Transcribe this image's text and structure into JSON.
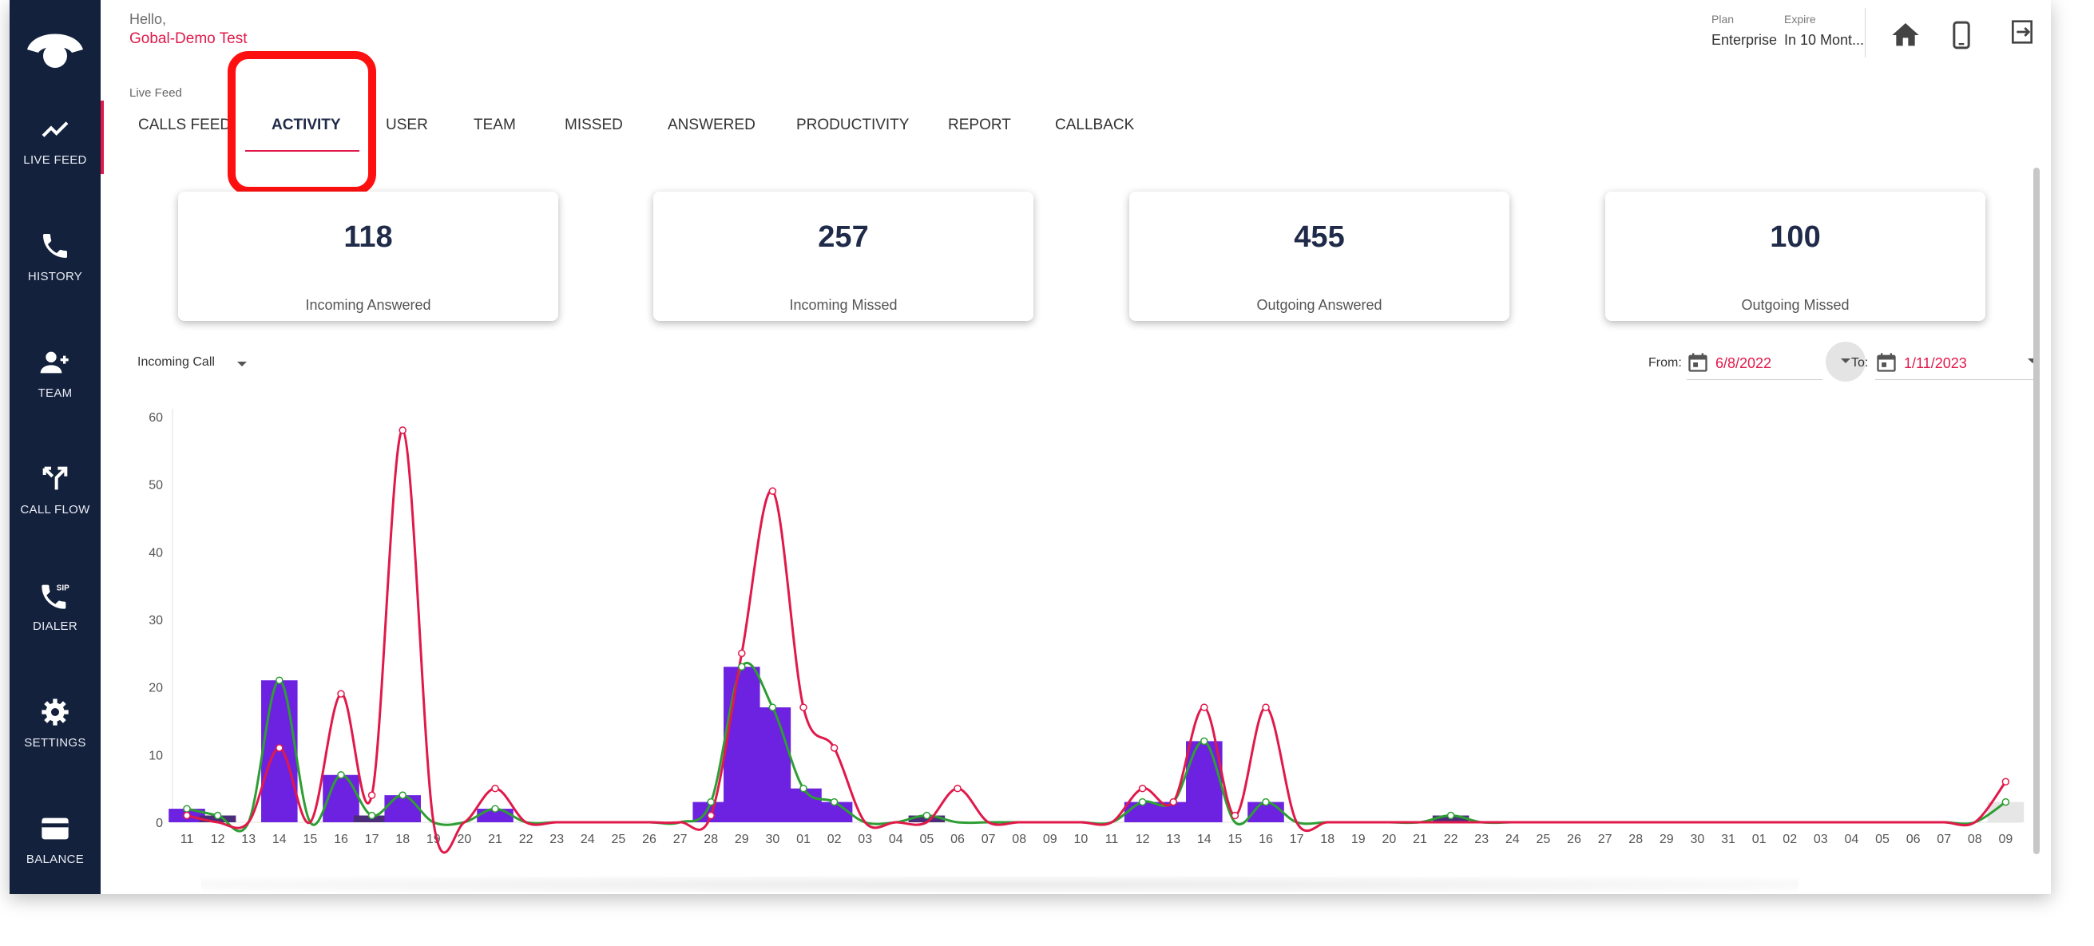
{
  "header": {
    "greeting": "Hello,",
    "user_name": "Gobal-Demo Test",
    "plan_label": "Plan",
    "plan_value": "Enterprise",
    "expire_label": "Expire",
    "expire_value": "In 10 Mont..."
  },
  "sidebar": {
    "items": [
      {
        "label": "LIVE FEED",
        "icon": "trend-icon"
      },
      {
        "label": "HISTORY",
        "icon": "phone-icon"
      },
      {
        "label": "TEAM",
        "icon": "add-user-icon"
      },
      {
        "label": "CALL FLOW",
        "icon": "call-split-icon"
      },
      {
        "label": "DIALER",
        "icon": "sip-phone-icon"
      },
      {
        "label": "SETTINGS",
        "icon": "gear-icon"
      },
      {
        "label": "BALANCE",
        "icon": "card-icon"
      }
    ]
  },
  "breadcrumb": "Live Feed",
  "tabs": [
    {
      "label": "CALLS FEED"
    },
    {
      "label": "ACTIVITY"
    },
    {
      "label": "USER"
    },
    {
      "label": "TEAM"
    },
    {
      "label": "MISSED"
    },
    {
      "label": "ANSWERED"
    },
    {
      "label": "PRODUCTIVITY"
    },
    {
      "label": "REPORT"
    },
    {
      "label": "CALLBACK"
    }
  ],
  "stats": [
    {
      "value": "118",
      "label": "Incoming Answered"
    },
    {
      "value": "257",
      "label": "Incoming Missed"
    },
    {
      "value": "455",
      "label": "Outgoing Answered"
    },
    {
      "value": "100",
      "label": "Outgoing Missed"
    }
  ],
  "filters": {
    "call_type": "Incoming Call",
    "from_label": "From:",
    "from_value": "6/8/2022",
    "to_label": "To:",
    "to_value": "1/11/2023"
  },
  "colors": {
    "accent": "#e0194a",
    "sidebar": "#13213d",
    "bar": "#6c22e0",
    "green_line": "#2e9e34",
    "red_line": "#e0194a"
  },
  "chart_data": {
    "type": "bar",
    "ylim": [
      0,
      60
    ],
    "yticks": [
      0,
      10,
      20,
      30,
      40,
      50,
      60
    ],
    "categories": [
      "11",
      "12",
      "13",
      "14",
      "15",
      "16",
      "17",
      "18",
      "19",
      "20",
      "21",
      "22",
      "23",
      "24",
      "25",
      "26",
      "27",
      "28",
      "29",
      "30",
      "01",
      "02",
      "03",
      "04",
      "05",
      "06",
      "07",
      "08",
      "09",
      "10",
      "11",
      "12",
      "13",
      "14",
      "15",
      "16",
      "17",
      "18",
      "19",
      "20",
      "21",
      "22",
      "23",
      "24",
      "25",
      "26",
      "27",
      "28",
      "29",
      "30",
      "31",
      "01",
      "02",
      "03",
      "04",
      "05",
      "06",
      "07",
      "08",
      "09"
    ],
    "series": [
      {
        "type": "bar",
        "values": [
          2,
          1,
          0,
          21,
          0,
          7,
          1,
          4,
          0,
          0,
          2,
          0,
          0,
          0,
          0,
          0,
          0,
          3,
          23,
          17,
          5,
          3,
          0,
          0,
          1,
          0,
          0,
          0,
          0,
          0,
          0,
          3,
          3,
          12,
          0,
          3,
          0,
          0,
          0,
          0,
          0,
          1,
          0,
          0,
          0,
          0,
          0,
          0,
          0,
          0,
          0,
          0,
          0,
          0,
          0,
          0,
          0,
          0,
          0,
          3
        ]
      },
      {
        "type": "line",
        "values": [
          2,
          1,
          0,
          21,
          0,
          7,
          1,
          4,
          0,
          0,
          2,
          0,
          0,
          0,
          0,
          0,
          0,
          3,
          23,
          17,
          5,
          3,
          0,
          0,
          1,
          0,
          0,
          0,
          0,
          0,
          0,
          3,
          3,
          12,
          0,
          3,
          0,
          0,
          0,
          0,
          0,
          1,
          0,
          0,
          0,
          0,
          0,
          0,
          0,
          0,
          0,
          0,
          0,
          0,
          0,
          0,
          0,
          0,
          0,
          3
        ]
      },
      {
        "type": "line",
        "values": [
          1,
          0,
          0,
          11,
          0,
          19,
          4,
          58,
          0,
          0,
          5,
          0,
          0,
          0,
          0,
          0,
          0,
          1,
          25,
          49,
          17,
          11,
          0,
          0,
          0,
          5,
          0,
          0,
          0,
          0,
          0,
          5,
          3,
          17,
          1,
          17,
          0,
          0,
          0,
          0,
          0,
          0,
          0,
          0,
          0,
          0,
          0,
          0,
          0,
          0,
          0,
          0,
          0,
          0,
          0,
          0,
          0,
          0,
          0,
          6
        ]
      }
    ]
  }
}
